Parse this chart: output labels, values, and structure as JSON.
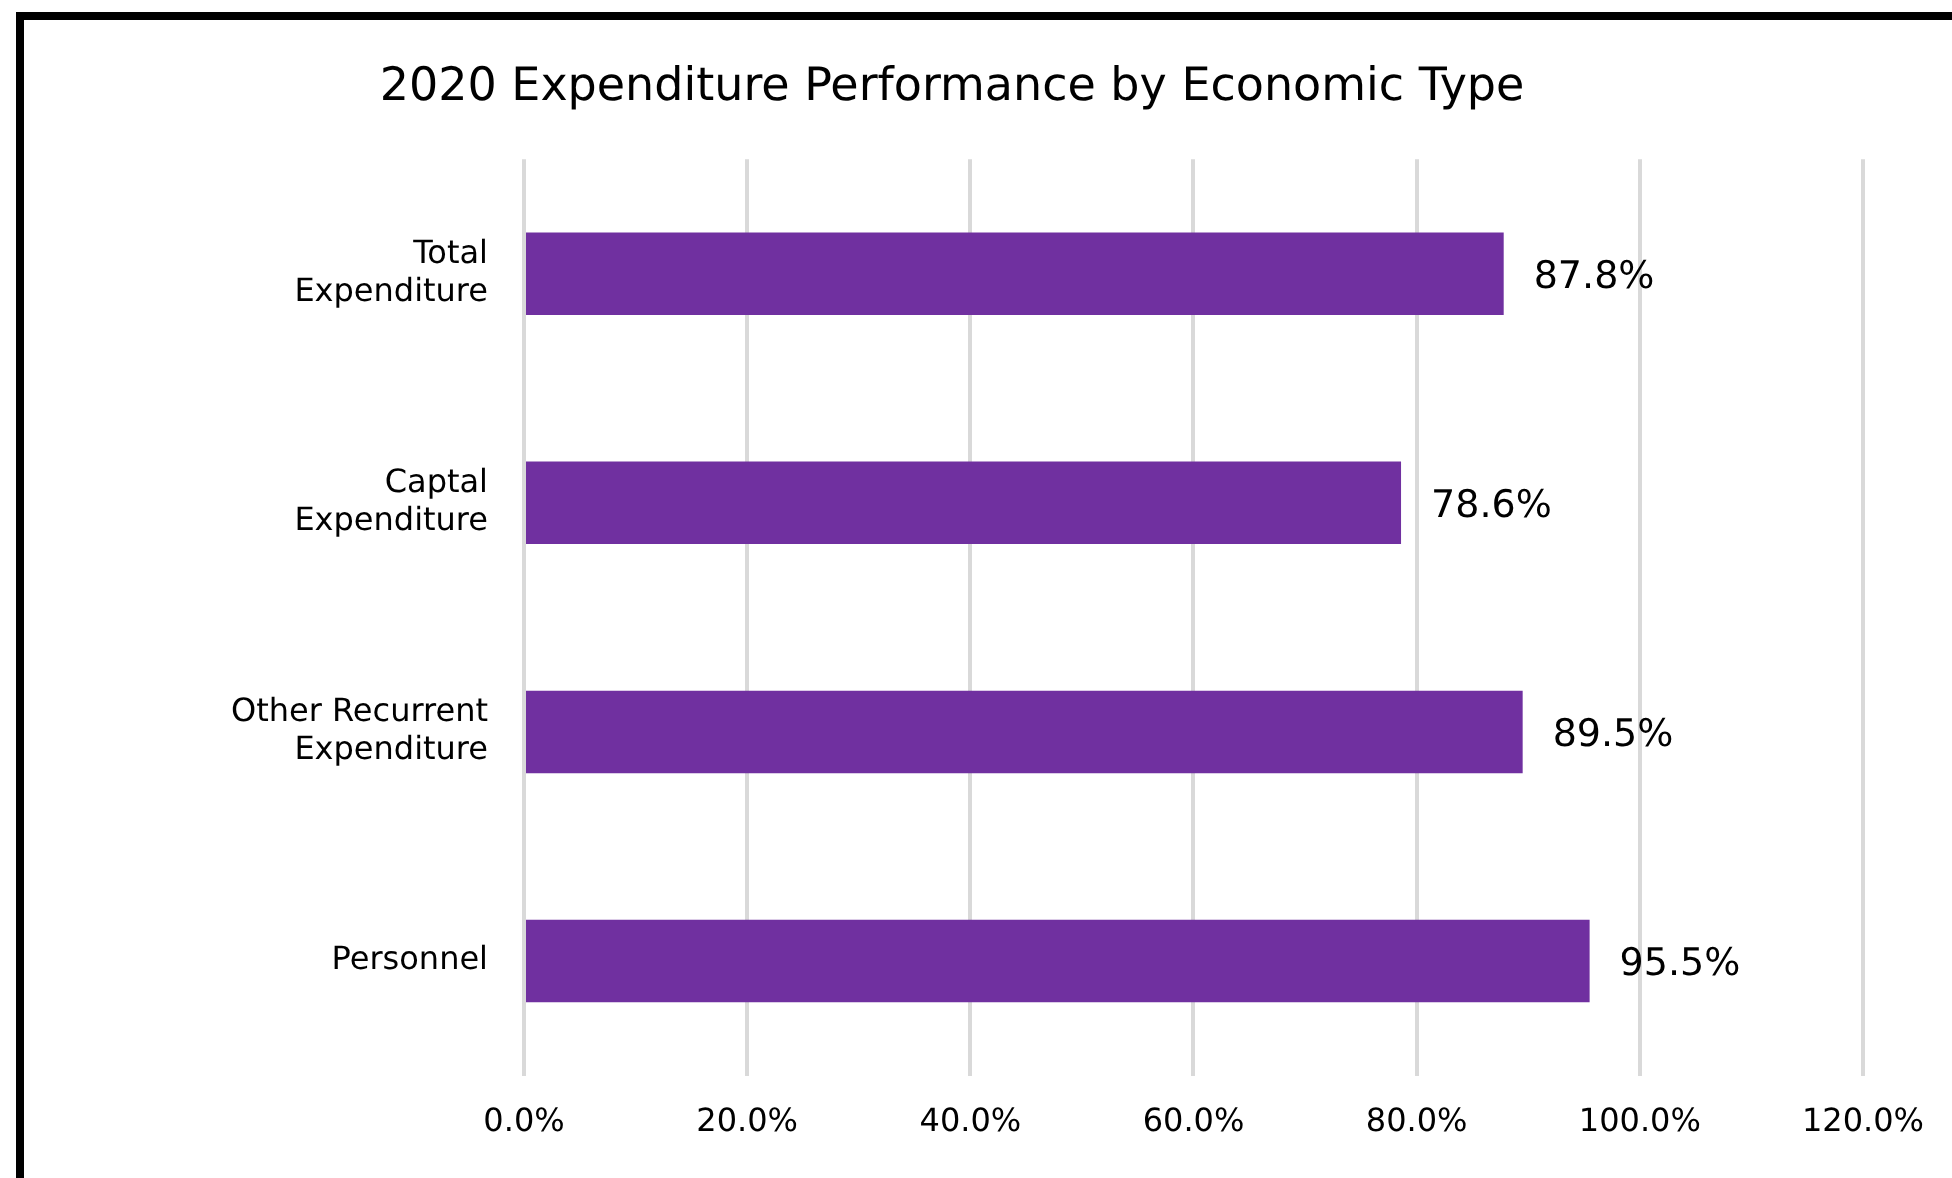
{
  "chart_data": {
    "type": "bar",
    "orientation": "horizontal",
    "title": "2020 Expenditure Performance by Economic Type",
    "categories": [
      "Total Expenditure",
      "Captal Expenditure",
      "Other Recurrent Expenditure",
      "Personnel"
    ],
    "values": [
      87.8,
      78.6,
      89.5,
      95.5
    ],
    "value_labels": [
      "87.8%",
      "78.6%",
      "89.5%",
      "95.5%"
    ],
    "color": "#7030a0",
    "xlim": [
      0,
      120
    ],
    "xticks": [
      {
        "value": 0,
        "label": "0.0%"
      },
      {
        "value": 20,
        "label": "20.0%"
      },
      {
        "value": 40,
        "label": "40.0%"
      },
      {
        "value": 60,
        "label": "60.0%"
      },
      {
        "value": 80,
        "label": "80.0%"
      },
      {
        "value": 100,
        "label": "100.0%"
      },
      {
        "value": 120,
        "label": "120.0%"
      }
    ],
    "grid": "x",
    "legend": false
  }
}
